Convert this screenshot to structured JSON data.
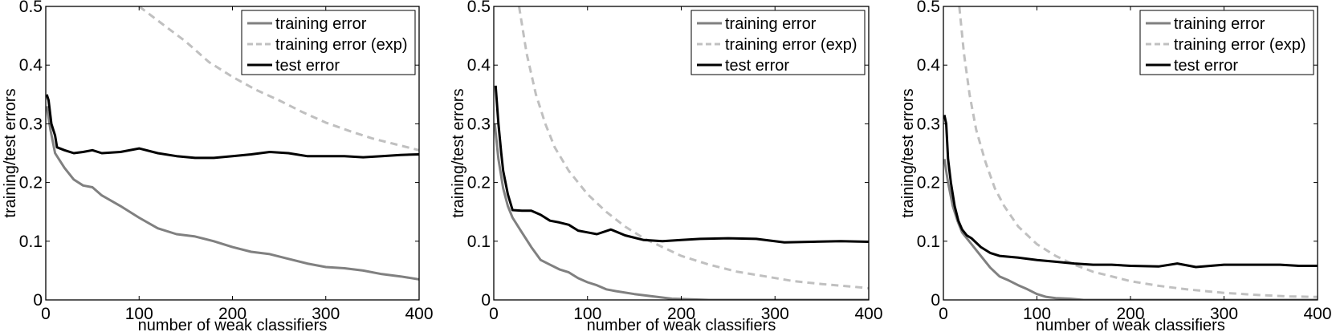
{
  "chart_data": [
    {
      "type": "line",
      "title": "",
      "xlabel": "number of weak classifiers",
      "ylabel": "training/test errors",
      "xlim": [
        0,
        400
      ],
      "ylim": [
        0,
        0.5
      ],
      "xticks": [
        "0",
        "100",
        "200",
        "300",
        "400"
      ],
      "yticks": [
        "0",
        "0.1",
        "0.2",
        "0.3",
        "0.4",
        "0.5"
      ],
      "grid": false,
      "legend_position": "upper right",
      "series": [
        {
          "name": "training error",
          "color": "#808080",
          "style": "solid",
          "x": [
            1,
            5,
            10,
            20,
            30,
            40,
            50,
            60,
            80,
            100,
            120,
            140,
            160,
            180,
            200,
            220,
            240,
            260,
            280,
            300,
            320,
            340,
            360,
            380,
            400
          ],
          "y": [
            0.33,
            0.29,
            0.25,
            0.225,
            0.205,
            0.195,
            0.192,
            0.178,
            0.16,
            0.14,
            0.122,
            0.112,
            0.108,
            0.1,
            0.09,
            0.082,
            0.078,
            0.07,
            0.062,
            0.056,
            0.054,
            0.05,
            0.044,
            0.04,
            0.035
          ]
        },
        {
          "name": "training error (exp)",
          "color": "#c0c0c0",
          "style": "dashed",
          "x": [
            100,
            125,
            150,
            175,
            200,
            225,
            250,
            275,
            300,
            325,
            350,
            375,
            400
          ],
          "y": [
            0.5,
            0.47,
            0.44,
            0.405,
            0.38,
            0.358,
            0.34,
            0.32,
            0.302,
            0.288,
            0.275,
            0.265,
            0.255
          ]
        },
        {
          "name": "test error",
          "color": "#000000",
          "style": "solid",
          "x": [
            1,
            3,
            6,
            10,
            12,
            20,
            30,
            40,
            50,
            60,
            80,
            100,
            120,
            140,
            160,
            180,
            200,
            220,
            240,
            260,
            280,
            300,
            320,
            340,
            360,
            380,
            400
          ],
          "y": [
            0.35,
            0.34,
            0.3,
            0.28,
            0.26,
            0.255,
            0.25,
            0.252,
            0.255,
            0.25,
            0.252,
            0.258,
            0.25,
            0.245,
            0.242,
            0.242,
            0.245,
            0.248,
            0.252,
            0.25,
            0.245,
            0.245,
            0.245,
            0.243,
            0.245,
            0.247,
            0.248
          ]
        }
      ]
    },
    {
      "type": "line",
      "title": "",
      "xlabel": "number of weak classifiers",
      "ylabel": "training/test errors",
      "xlim": [
        0,
        400
      ],
      "ylim": [
        0,
        0.5
      ],
      "xticks": [
        "0",
        "100",
        "200",
        "300",
        "400"
      ],
      "yticks": [
        "0",
        "0.1",
        "0.2",
        "0.3",
        "0.4",
        "0.5"
      ],
      "grid": false,
      "legend_position": "upper right",
      "series": [
        {
          "name": "training error",
          "color": "#808080",
          "style": "solid",
          "x": [
            1,
            5,
            10,
            15,
            20,
            30,
            40,
            50,
            60,
            70,
            80,
            90,
            100,
            110,
            120,
            130,
            150,
            170,
            190,
            210,
            230,
            400
          ],
          "y": [
            0.3,
            0.24,
            0.19,
            0.16,
            0.14,
            0.115,
            0.09,
            0.068,
            0.06,
            0.052,
            0.047,
            0.037,
            0.03,
            0.025,
            0.018,
            0.015,
            0.01,
            0.006,
            0.002,
            0.001,
            0.0,
            0.0
          ]
        },
        {
          "name": "training error (exp)",
          "color": "#c0c0c0",
          "style": "dashed",
          "x": [
            27,
            35,
            45,
            55,
            65,
            80,
            100,
            120,
            140,
            160,
            180,
            200,
            230,
            260,
            290,
            320,
            350,
            380,
            400
          ],
          "y": [
            0.5,
            0.42,
            0.35,
            0.3,
            0.26,
            0.22,
            0.18,
            0.15,
            0.125,
            0.105,
            0.09,
            0.075,
            0.06,
            0.048,
            0.04,
            0.032,
            0.027,
            0.023,
            0.02
          ]
        },
        {
          "name": "test error",
          "color": "#000000",
          "style": "solid",
          "x": [
            2,
            5,
            8,
            10,
            15,
            20,
            30,
            40,
            50,
            60,
            70,
            80,
            90,
            100,
            110,
            125,
            140,
            160,
            180,
            200,
            220,
            250,
            280,
            310,
            340,
            370,
            400
          ],
          "y": [
            0.365,
            0.3,
            0.25,
            0.22,
            0.18,
            0.153,
            0.152,
            0.152,
            0.145,
            0.135,
            0.132,
            0.128,
            0.118,
            0.115,
            0.112,
            0.12,
            0.11,
            0.102,
            0.1,
            0.102,
            0.104,
            0.105,
            0.104,
            0.098,
            0.099,
            0.1,
            0.099
          ]
        }
      ]
    },
    {
      "type": "line",
      "title": "",
      "xlabel": "number of weak classifiers",
      "ylabel": "training/test errors",
      "xlim": [
        0,
        400
      ],
      "ylim": [
        0,
        0.5
      ],
      "xticks": [
        "0",
        "100",
        "200",
        "300",
        "400"
      ],
      "yticks": [
        "0",
        "0.1",
        "0.2",
        "0.3",
        "0.4",
        "0.5"
      ],
      "grid": false,
      "legend_position": "upper right",
      "series": [
        {
          "name": "training error",
          "color": "#808080",
          "style": "solid",
          "x": [
            1,
            5,
            10,
            15,
            20,
            25,
            30,
            40,
            50,
            60,
            70,
            80,
            90,
            100,
            110,
            120,
            135,
            150,
            400
          ],
          "y": [
            0.24,
            0.2,
            0.16,
            0.135,
            0.115,
            0.105,
            0.095,
            0.075,
            0.055,
            0.04,
            0.033,
            0.025,
            0.018,
            0.01,
            0.005,
            0.003,
            0.002,
            0.0,
            0.0
          ]
        },
        {
          "name": "training error (exp)",
          "color": "#c0c0c0",
          "style": "dashed",
          "x": [
            17,
            22,
            28,
            35,
            45,
            55,
            65,
            80,
            100,
            120,
            140,
            160,
            180,
            200,
            230,
            260,
            300,
            340,
            370,
            400
          ],
          "y": [
            0.5,
            0.42,
            0.35,
            0.29,
            0.235,
            0.19,
            0.16,
            0.125,
            0.095,
            0.075,
            0.06,
            0.048,
            0.04,
            0.032,
            0.024,
            0.018,
            0.012,
            0.008,
            0.006,
            0.005
          ]
        },
        {
          "name": "test error",
          "color": "#000000",
          "style": "solid",
          "x": [
            1,
            3,
            5,
            8,
            12,
            16,
            20,
            25,
            30,
            40,
            50,
            60,
            80,
            100,
            120,
            140,
            160,
            180,
            200,
            230,
            250,
            270,
            300,
            330,
            360,
            380,
            400
          ],
          "y": [
            0.315,
            0.3,
            0.24,
            0.2,
            0.16,
            0.135,
            0.12,
            0.11,
            0.105,
            0.09,
            0.08,
            0.075,
            0.072,
            0.068,
            0.065,
            0.062,
            0.06,
            0.06,
            0.058,
            0.057,
            0.062,
            0.056,
            0.06,
            0.06,
            0.06,
            0.058,
            0.058
          ]
        }
      ]
    }
  ],
  "panels": [
    {
      "xlabel": "number of weak classifiers",
      "ylabel": "training/test errors",
      "legend": [
        "training error",
        "training error (exp)",
        "test error"
      ]
    },
    {
      "xlabel": "number of weak classifiers",
      "ylabel": "training/test errors",
      "legend": [
        "training error",
        "training error (exp)",
        "test error"
      ]
    },
    {
      "xlabel": "number of weak classifiers",
      "ylabel": "training/test errors",
      "legend": [
        "training error",
        "training error (exp)",
        "test error"
      ]
    }
  ]
}
